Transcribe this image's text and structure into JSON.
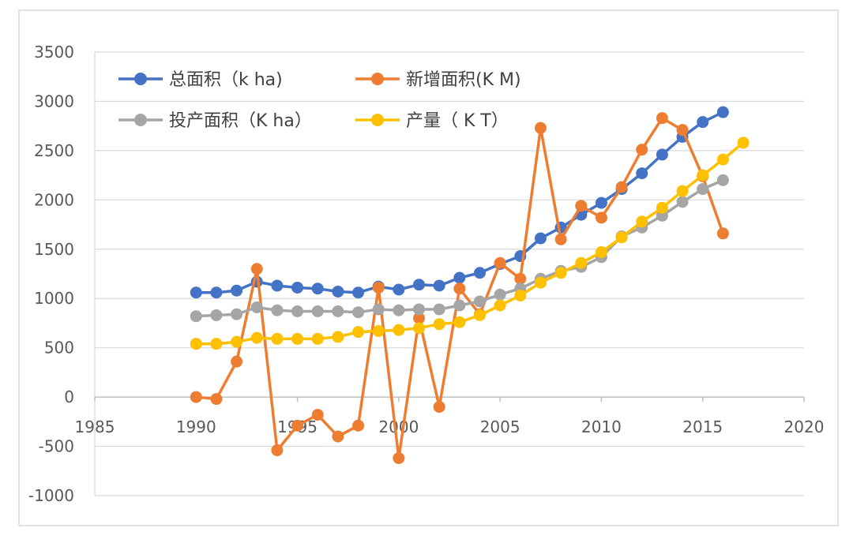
{
  "chart_data": {
    "type": "line",
    "title": "",
    "xlabel": "",
    "ylabel": "",
    "xlim": [
      1985,
      2020
    ],
    "ylim": [
      -1000,
      3500
    ],
    "x_ticks": [
      1985,
      1990,
      1995,
      2000,
      2005,
      2010,
      2015,
      2020
    ],
    "y_ticks": [
      -1000,
      -500,
      0,
      500,
      1000,
      1500,
      2000,
      2500,
      3000,
      3500
    ],
    "grid": "horizontal",
    "legend_position": "top-left",
    "series": [
      {
        "name": "总面积（k ha)",
        "color": "#4472C4",
        "x": [
          1990,
          1991,
          1992,
          1993,
          1994,
          1995,
          1996,
          1997,
          1998,
          1999,
          2000,
          2001,
          2002,
          2003,
          2004,
          2005,
          2006,
          2007,
          2008,
          2009,
          2010,
          2011,
          2012,
          2013,
          2014,
          2015,
          2016
        ],
        "values": [
          1060,
          1060,
          1080,
          1170,
          1130,
          1110,
          1100,
          1070,
          1060,
          1120,
          1090,
          1140,
          1130,
          1210,
          1260,
          1350,
          1430,
          1610,
          1720,
          1850,
          1970,
          2110,
          2270,
          2460,
          2640,
          2790,
          2890
        ]
      },
      {
        "name": "新增面积(K M)",
        "color": "#ED7D31",
        "x": [
          1990,
          1991,
          1992,
          1993,
          1994,
          1995,
          1996,
          1997,
          1998,
          1999,
          2000,
          2001,
          2002,
          2003,
          2004,
          2005,
          2006,
          2007,
          2008,
          2009,
          2010,
          2011,
          2012,
          2013,
          2014,
          2015,
          2016
        ],
        "values": [
          0,
          -20,
          360,
          1300,
          -540,
          -290,
          -180,
          -400,
          -290,
          1110,
          -620,
          800,
          -100,
          1100,
          840,
          1360,
          1200,
          2730,
          1600,
          1940,
          1820,
          2130,
          2510,
          2830,
          2710,
          2240,
          1660
        ]
      },
      {
        "name": "投产面积（K ha）",
        "color": "#A5A5A5",
        "x": [
          1990,
          1991,
          1992,
          1993,
          1994,
          1995,
          1996,
          1997,
          1998,
          1999,
          2000,
          2001,
          2002,
          2003,
          2004,
          2005,
          2006,
          2007,
          2008,
          2009,
          2010,
          2011,
          2012,
          2013,
          2014,
          2015,
          2016
        ],
        "values": [
          820,
          830,
          840,
          910,
          880,
          870,
          870,
          870,
          860,
          890,
          880,
          890,
          890,
          930,
          970,
          1040,
          1100,
          1200,
          1280,
          1320,
          1420,
          1630,
          1720,
          1840,
          1980,
          2110,
          2200
        ]
      },
      {
        "name": "产量（ K T）",
        "color": "#FFC000",
        "x": [
          1990,
          1991,
          1992,
          1993,
          1994,
          1995,
          1996,
          1997,
          1998,
          1999,
          2000,
          2001,
          2002,
          2003,
          2004,
          2005,
          2006,
          2007,
          2008,
          2009,
          2010,
          2011,
          2012,
          2013,
          2014,
          2015,
          2016,
          2017
        ],
        "values": [
          540,
          540,
          560,
          600,
          590,
          590,
          590,
          610,
          660,
          670,
          680,
          700,
          740,
          760,
          830,
          930,
          1030,
          1160,
          1260,
          1360,
          1470,
          1620,
          1780,
          1920,
          2090,
          2250,
          2410,
          2580
        ]
      }
    ]
  }
}
